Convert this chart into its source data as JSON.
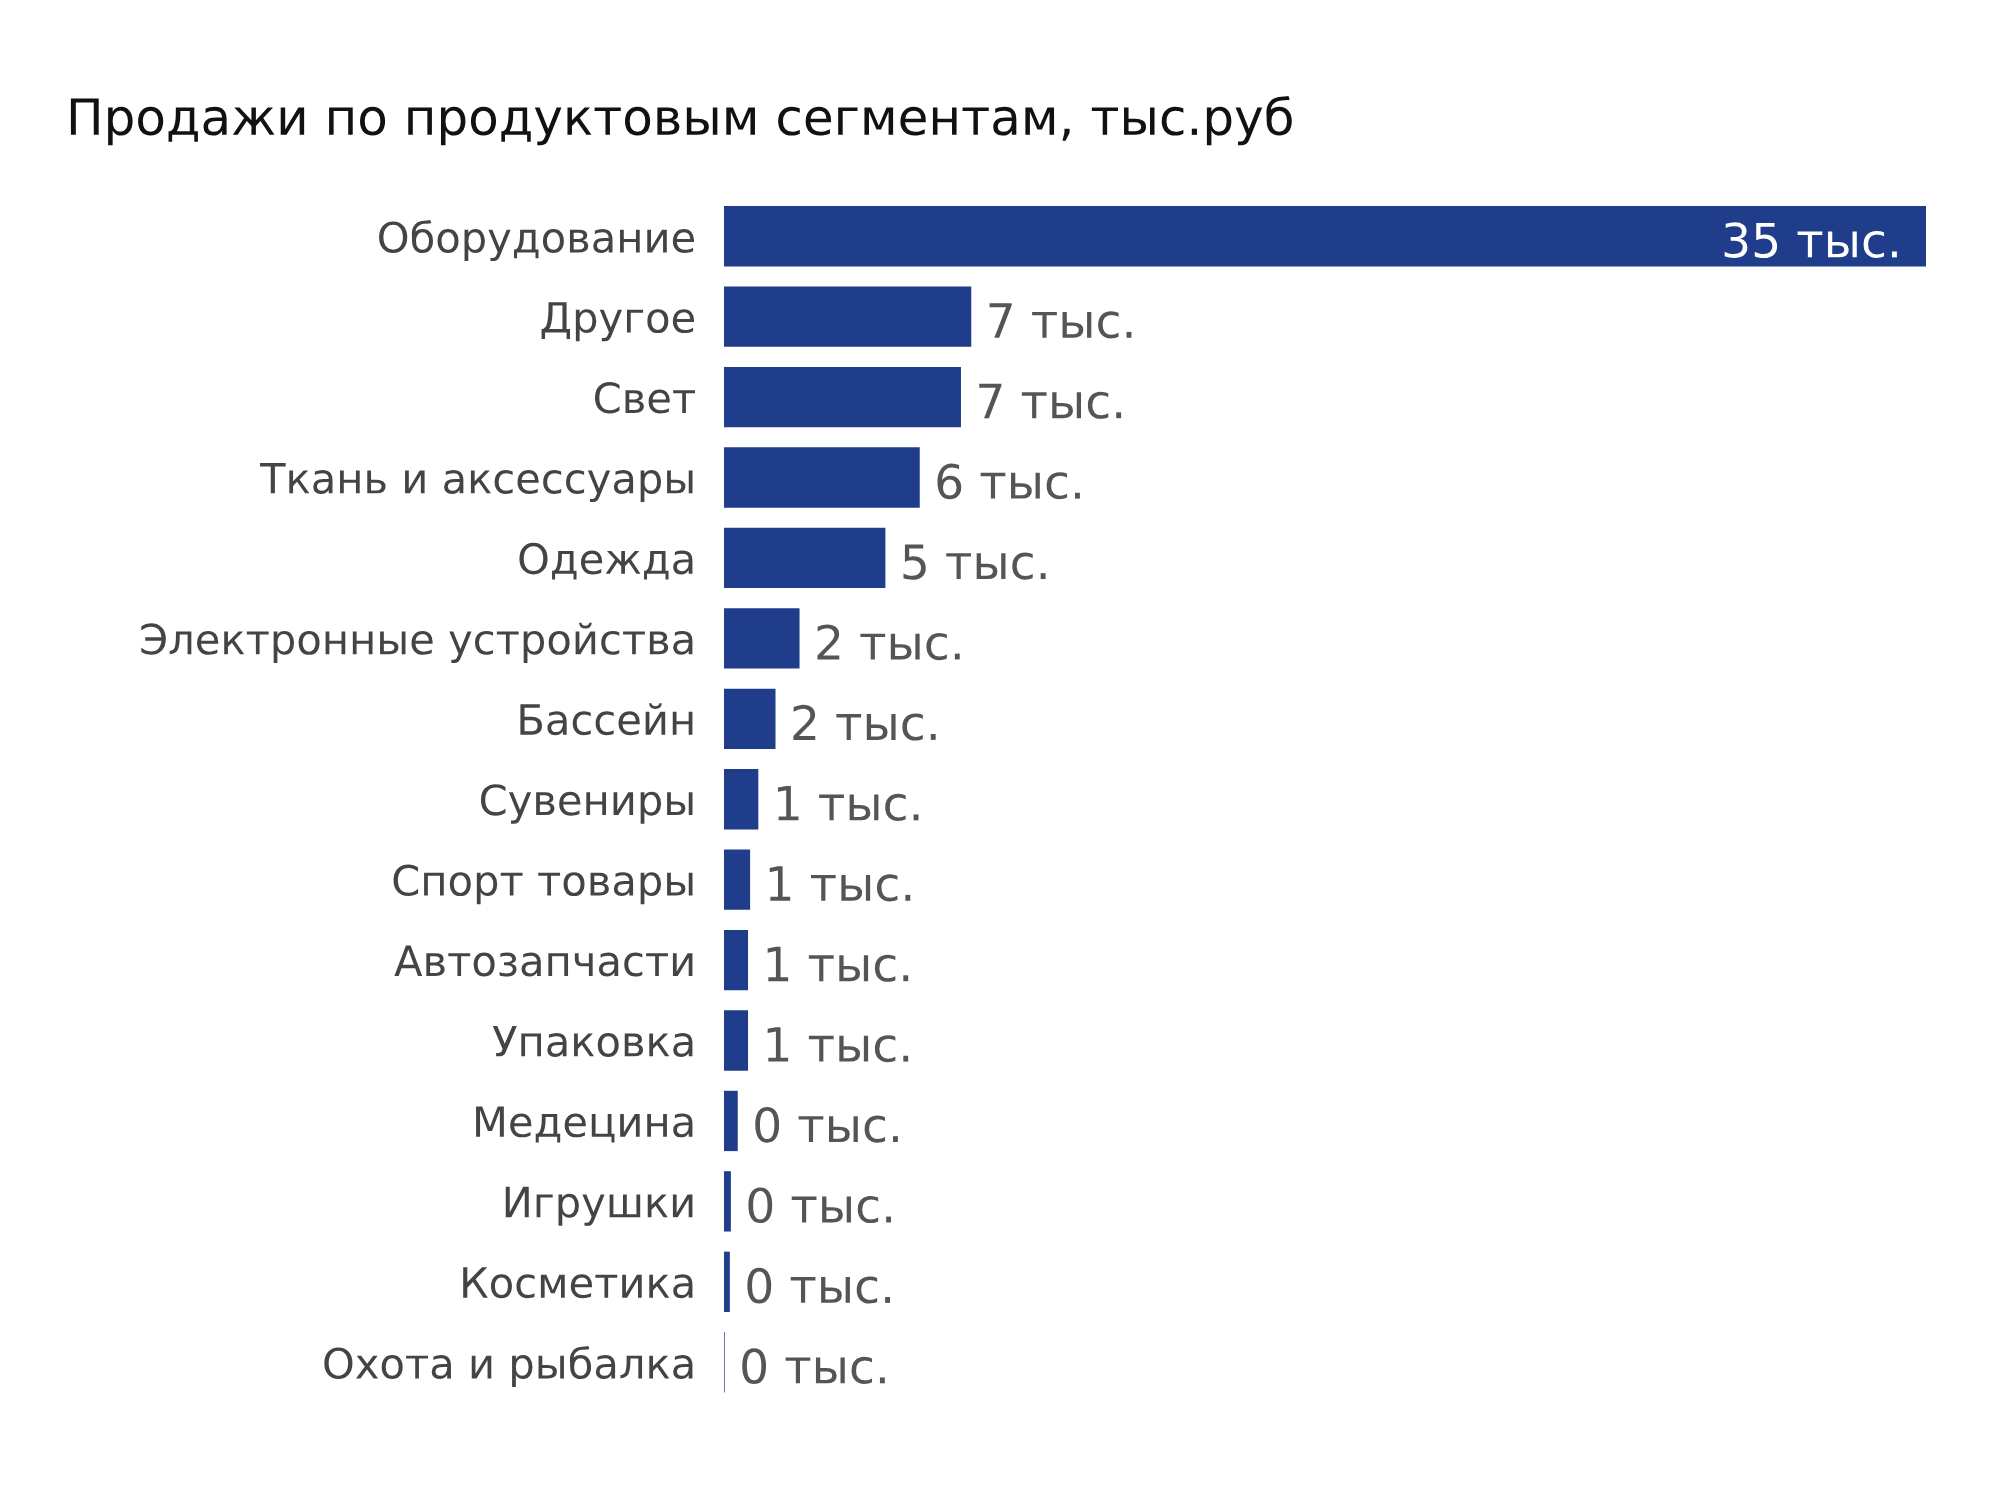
{
  "chart_data": {
    "type": "bar",
    "orientation": "horizontal",
    "title": "Продажи по продуктовым сегментам, тыс.руб",
    "categories": [
      "Оборудование",
      "Другое",
      "Свет",
      "Ткань и аксессуары",
      "Одежда",
      "Электронные устройства",
      "Бассейн",
      "Сувениры",
      "Спорт товары",
      "Автозапчасти",
      "Упаковка",
      "Медецина",
      "Игрушки",
      "Косметика",
      "Охота и рыбалка"
    ],
    "values": [
      35,
      7.2,
      6.9,
      5.7,
      4.7,
      2.2,
      1.5,
      1.0,
      0.76,
      0.7,
      0.7,
      0.4,
      0.2,
      0.17,
      0.02
    ],
    "value_labels": [
      "35 тыс.",
      "7 тыс.",
      "7 тыс.",
      "6 тыс.",
      "5 тыс.",
      "2 тыс.",
      "2 тыс.",
      "1 тыс.",
      "1 тыс.",
      "1 тыс.",
      "1 тыс.",
      "0 тыс.",
      "0 тыс.",
      "0 тыс.",
      "0 тыс."
    ],
    "color": "#1f3d8a",
    "grid": false,
    "legend": false
  }
}
